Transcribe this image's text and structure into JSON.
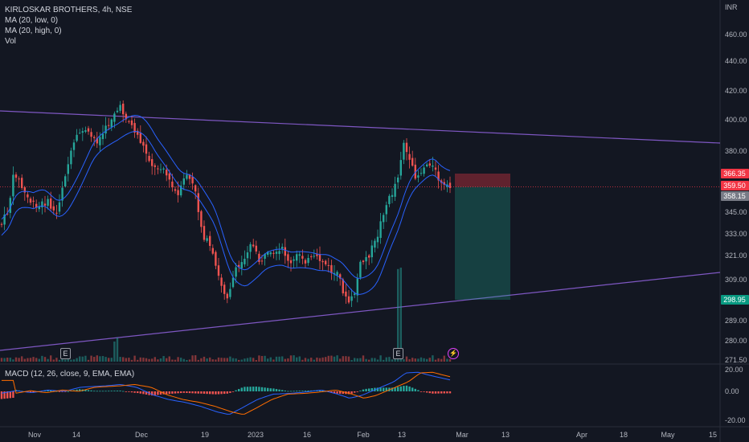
{
  "header": {
    "symbol_line": "KIRLOSKAR BROTHERS, 4h, NSE",
    "ma_low": "MA (20, low, 0)",
    "ma_high": "MA (20, high, 0)",
    "vol": "Vol",
    "macd": "MACD (12, 26, close, 9, EMA, EMA)"
  },
  "currency": "INR",
  "colors": {
    "up": "#26a69a",
    "down": "#ef5350",
    "ma": "#2962ff",
    "trendline": "#7e57c2",
    "stop": "#f23645",
    "target": "#22ab94",
    "macd": "#2962ff",
    "signal": "#ff6d00"
  },
  "price_axis": [
    "460.00",
    "440.00",
    "420.00",
    "400.00",
    "380.00",
    "366.35",
    "359.50",
    "358.15",
    "345.00",
    "333.00",
    "321.00",
    "309.00",
    "298.95",
    "289.00",
    "280.00",
    "271.50"
  ],
  "price_badges": [
    {
      "label": "366.35",
      "color": "#f23645"
    },
    {
      "label": "359.50",
      "color": "#f23645"
    },
    {
      "label": "358.15",
      "color": "#787b86"
    },
    {
      "label": "298.95",
      "color": "#089981"
    }
  ],
  "macd_axis": [
    "20.00",
    "0.00",
    "-20.00"
  ],
  "time_axis": [
    "Nov",
    "14",
    "Dec",
    "19",
    "2023",
    "16",
    "Feb",
    "13",
    "Mar",
    "13",
    "Apr",
    "18",
    "May",
    "15"
  ],
  "events": {
    "earnings_label": "E",
    "dividend_label": "⚡"
  },
  "chart_data": {
    "type": "candlestick",
    "series": [
      {
        "name": "KIRLOSKAR BROTHERS",
        "interval": "4h"
      }
    ],
    "ylim": [
      271.5,
      470
    ],
    "trendlines": [
      {
        "from": [
          0,
          400
        ],
        "to": [
          896,
          384
        ]
      },
      {
        "from": [
          0,
          272
        ],
        "to": [
          896,
          313
        ]
      }
    ],
    "position": {
      "entry": 359.5,
      "stop": 366.35,
      "target": 298.95
    }
  }
}
